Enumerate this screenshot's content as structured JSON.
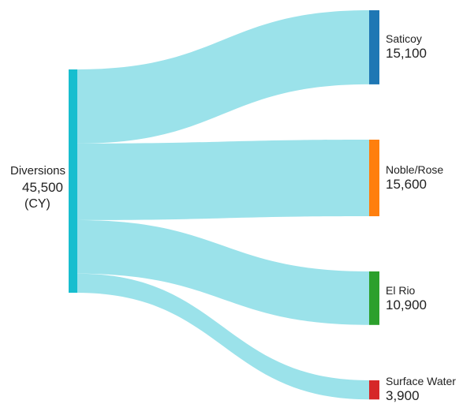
{
  "source": {
    "name": "Diversions",
    "value_label": "45,500",
    "unit_label": "(CY)",
    "value": 45500,
    "color": "#17becf"
  },
  "link_color": "#9be2ea",
  "targets": [
    {
      "name": "Saticoy",
      "value_label": "15,100",
      "value": 15100,
      "color": "#1f77b4"
    },
    {
      "name": "Noble/Rose",
      "value_label": "15,600",
      "value": 15600,
      "color": "#ff7f0e"
    },
    {
      "name": "El Rio",
      "value_label": "10,900",
      "value": 10900,
      "color": "#2ca02c"
    },
    {
      "name": "Surface Water",
      "value_label": "3,900",
      "value": 3900,
      "color": "#d62728"
    }
  ]
}
